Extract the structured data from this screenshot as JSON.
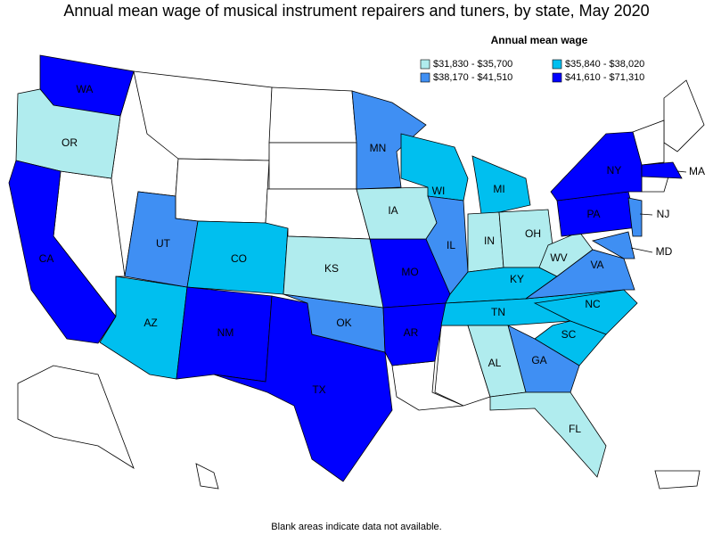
{
  "title": "Annual mean wage of musical instrument repairers and tuners, by state, May 2020",
  "legend": {
    "title": "Annual mean wage",
    "items": [
      {
        "label": "$31,830 - $35,700",
        "color": "#b0ecee"
      },
      {
        "label": "$35,840 - $38,020",
        "color": "#00bfef"
      },
      {
        "label": "$38,170 - $41,510",
        "color": "#3f8ff3"
      },
      {
        "label": "$41,610 - $71,310",
        "color": "#0000ff"
      }
    ]
  },
  "states": [
    {
      "label": "WA",
      "color": "#0000ff"
    },
    {
      "label": "OR",
      "color": "#b0ecee"
    },
    {
      "label": "CA",
      "color": "#0000ff"
    },
    {
      "label": "AZ",
      "color": "#00bfef"
    },
    {
      "label": "UT",
      "color": "#3f8ff3"
    },
    {
      "label": "CO",
      "color": "#00bfef"
    },
    {
      "label": "NM",
      "color": "#0000ff"
    },
    {
      "label": "TX",
      "color": "#0000ff"
    },
    {
      "label": "OK",
      "color": "#3f8ff3"
    },
    {
      "label": "KS",
      "color": "#b0ecee"
    },
    {
      "label": "MO",
      "color": "#0000ff"
    },
    {
      "label": "AR",
      "color": "#0000ff"
    },
    {
      "label": "IA",
      "color": "#b0ecee"
    },
    {
      "label": "MN",
      "color": "#3f8ff3"
    },
    {
      "label": "WI",
      "color": "#00bfef"
    },
    {
      "label": "IL",
      "color": "#3f8ff3"
    },
    {
      "label": "MI",
      "color": "#00bfef"
    },
    {
      "label": "IN",
      "color": "#b0ecee"
    },
    {
      "label": "OH",
      "color": "#b0ecee"
    },
    {
      "label": "KY",
      "color": "#00bfef"
    },
    {
      "label": "TN",
      "color": "#00bfef"
    },
    {
      "label": "WV",
      "color": "#b0ecee"
    },
    {
      "label": "VA",
      "color": "#3f8ff3"
    },
    {
      "label": "NC",
      "color": "#00bfef"
    },
    {
      "label": "SC",
      "color": "#00bfef"
    },
    {
      "label": "GA",
      "color": "#3f8ff3"
    },
    {
      "label": "AL",
      "color": "#b0ecee"
    },
    {
      "label": "FL",
      "color": "#b0ecee"
    },
    {
      "label": "PA",
      "color": "#0000ff"
    },
    {
      "label": "NY",
      "color": "#0000ff"
    },
    {
      "label": "NJ",
      "color": "#3f8ff3"
    },
    {
      "label": "MD",
      "color": "#3f8ff3"
    },
    {
      "label": "MA",
      "color": "#0000ff"
    }
  ],
  "note": "Blank areas indicate data not available."
}
